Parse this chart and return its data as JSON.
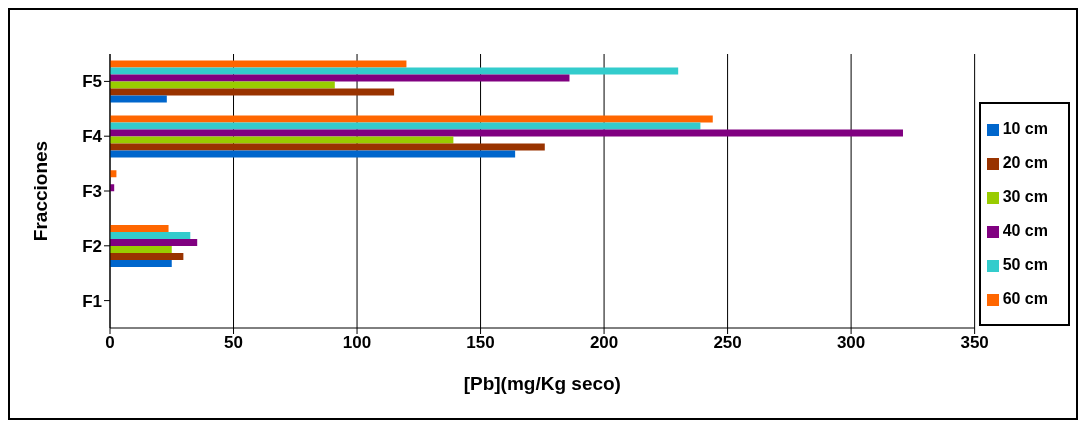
{
  "chart_data": {
    "type": "bar",
    "orientation": "horizontal",
    "xlabel": "[Pb](mg/Kg seco)",
    "ylabel": "Fracciones",
    "categories": [
      "F5",
      "F4",
      "F3",
      "F2",
      "F1"
    ],
    "series": [
      {
        "name": "60 cm",
        "color": "#ff6600",
        "values": [
          120,
          244,
          2.6,
          23.7,
          0
        ]
      },
      {
        "name": "50 cm",
        "color": "#33cccc",
        "values": [
          230,
          239,
          0,
          32.5,
          0
        ]
      },
      {
        "name": "40 cm",
        "color": "#800080",
        "values": [
          186,
          321,
          1.7,
          35.3,
          0
        ]
      },
      {
        "name": "30 cm",
        "color": "#99cc00",
        "values": [
          91,
          139,
          0,
          25,
          0
        ]
      },
      {
        "name": "20 cm",
        "color": "#993300",
        "values": [
          115,
          176,
          0,
          29.7,
          0
        ]
      },
      {
        "name": "10 cm",
        "color": "#0066cc",
        "values": [
          23,
          164,
          0,
          25,
          0
        ]
      }
    ],
    "xlim": [
      0,
      350
    ],
    "xticks": [
      0,
      50,
      100,
      150,
      200,
      250,
      300,
      350
    ],
    "grid": "x",
    "legend": "right"
  }
}
